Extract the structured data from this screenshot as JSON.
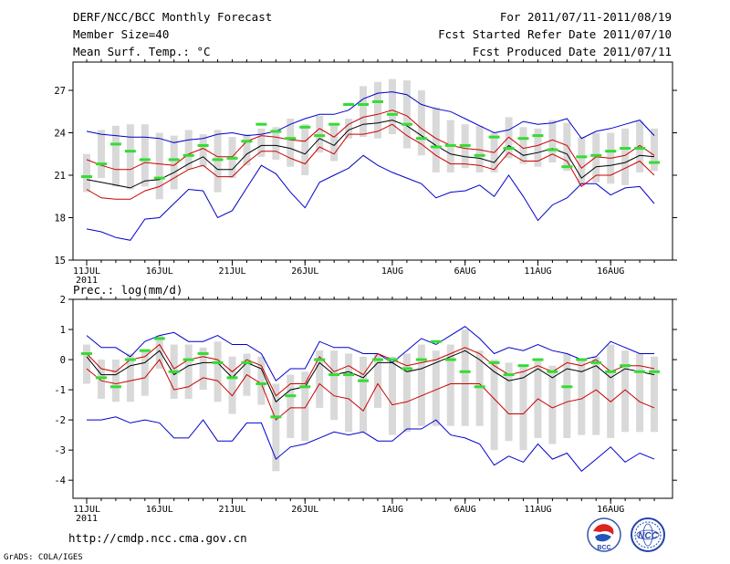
{
  "header": {
    "left_lines": [
      "DERF/NCC/BCC Monthly Forecast",
      "Member Size=40",
      "Mean Surf. Temp.: °C"
    ],
    "right_lines": [
      "For 2011/07/11-2011/08/19",
      "Fcst Started Refer Date 2011/07/10",
      "Fcst Produced Date 2011/07/11"
    ]
  },
  "footer": {
    "url": "http://cmdp.ncc.cma.gov.cn",
    "grads": "GrADS: COLA/IGES"
  },
  "logos": {
    "bcc": "BCC",
    "ncc": "NCC"
  },
  "colors": {
    "max": "#0000cc",
    "mean": "#000000",
    "spread": "#cc0000",
    "member": "#33dd33",
    "box": "#d9d9d9"
  },
  "chart_data": [
    {
      "type": "line",
      "title": "Mean Surf. Temp.: °C",
      "x_labels": [
        "11JUL",
        "16JUL",
        "21JUL",
        "26JUL",
        "1AUG",
        "6AUG",
        "11AUG",
        "16AUG"
      ],
      "x_sublabel": "2011",
      "yticks": [
        15,
        18,
        21,
        24,
        27
      ],
      "ylim": [
        15,
        29
      ],
      "series": {
        "max": [
          24.1,
          23.9,
          23.8,
          23.7,
          23.7,
          23.6,
          23.3,
          23.5,
          23.6,
          23.9,
          24.0,
          23.8,
          23.9,
          24.1,
          24.6,
          25.0,
          25.3,
          25.3,
          25.6,
          26.4,
          26.8,
          26.9,
          26.7,
          26.0,
          25.7,
          25.5,
          25.0,
          24.5,
          24.0,
          24.2,
          24.8,
          24.6,
          24.7,
          25.0,
          23.6,
          24.1,
          24.3,
          24.6,
          24.9,
          23.8
        ],
        "spread_upper": [
          22.1,
          21.7,
          21.4,
          21.4,
          21.9,
          21.8,
          21.7,
          22.5,
          22.9,
          22.3,
          22.3,
          23.4,
          23.8,
          23.7,
          23.5,
          23.4,
          24.3,
          23.7,
          24.6,
          25.1,
          25.3,
          25.6,
          25.2,
          24.3,
          23.6,
          23.1,
          22.9,
          22.8,
          22.6,
          23.7,
          22.9,
          23.1,
          23.5,
          23.1,
          21.5,
          22.3,
          22.2,
          22.4,
          23.1,
          22.4
        ],
        "mean": [
          20.7,
          20.5,
          20.3,
          20.1,
          20.6,
          20.7,
          21.2,
          21.8,
          22.3,
          21.4,
          21.4,
          22.5,
          23.1,
          23.1,
          22.9,
          22.5,
          23.6,
          23.1,
          24.2,
          24.6,
          24.7,
          24.9,
          24.5,
          23.8,
          23.1,
          22.5,
          22.3,
          22.2,
          21.9,
          23.1,
          22.4,
          22.6,
          22.9,
          22.5,
          20.8,
          21.6,
          21.7,
          21.9,
          22.4,
          22.3
        ],
        "spread_lower": [
          20.0,
          19.4,
          19.3,
          19.3,
          19.9,
          20.2,
          20.8,
          21.4,
          21.7,
          20.9,
          20.9,
          21.9,
          22.7,
          22.7,
          22.2,
          21.8,
          23.0,
          22.5,
          23.9,
          23.9,
          24.1,
          24.6,
          23.8,
          23.2,
          22.4,
          21.8,
          21.8,
          21.7,
          21.4,
          22.6,
          22.0,
          22.0,
          22.5,
          22.0,
          20.2,
          21.0,
          21.0,
          21.5,
          22.0,
          21.0
        ],
        "min": [
          17.2,
          17.0,
          16.6,
          16.4,
          17.9,
          18.0,
          19.0,
          20.0,
          19.9,
          18.0,
          18.5,
          20.1,
          21.7,
          21.1,
          19.8,
          18.7,
          20.5,
          21.0,
          21.5,
          22.4,
          21.7,
          21.2,
          20.8,
          20.4,
          19.4,
          19.8,
          19.9,
          20.3,
          19.5,
          21.0,
          19.5,
          17.8,
          18.9,
          19.4,
          20.4,
          20.4,
          19.6,
          20.1,
          20.2,
          19.0
        ],
        "box_top": [
          22.5,
          24.2,
          24.5,
          24.6,
          24.6,
          24.0,
          23.8,
          24.2,
          23.9,
          24.2,
          23.7,
          23.9,
          24.3,
          24.4,
          25.0,
          24.6,
          25.2,
          24.5,
          25.0,
          27.3,
          27.6,
          27.8,
          27.7,
          27.0,
          25.8,
          24.9,
          24.6,
          24.5,
          24.0,
          25.1,
          24.4,
          24.3,
          24.9,
          24.7,
          23.7,
          24.0,
          24.0,
          24.3,
          24.8,
          24.3
        ],
        "box_bottom": [
          19.8,
          20.8,
          20.2,
          20.0,
          20.2,
          19.3,
          20.0,
          21.4,
          21.6,
          19.8,
          20.8,
          21.7,
          22.3,
          22.1,
          21.6,
          21.0,
          22.6,
          22.0,
          23.6,
          23.7,
          23.6,
          23.9,
          22.9,
          22.4,
          21.2,
          21.2,
          21.5,
          21.2,
          21.2,
          22.2,
          21.8,
          21.6,
          21.9,
          21.3,
          20.3,
          20.5,
          20.4,
          20.3,
          21.2,
          21.3
        ],
        "members": [
          20.9,
          21.8,
          23.2,
          22.7,
          22.1,
          20.8,
          22.1,
          22.4,
          23.1,
          22.1,
          22.2,
          23.4,
          24.6,
          24.1,
          23.6,
          24.4,
          23.8,
          24.6,
          26.0,
          26.0,
          26.2,
          25.3,
          24.6,
          23.6,
          23.0,
          23.1,
          23.1,
          22.4,
          23.7,
          22.9,
          23.6,
          23.8,
          22.8,
          21.6,
          22.3,
          22.4,
          22.7,
          22.9,
          22.9,
          21.9
        ]
      }
    },
    {
      "type": "line",
      "title": "Prec.: log(mm/d)",
      "x_labels": [
        "11JUL",
        "16JUL",
        "21JUL",
        "26JUL",
        "1AUG",
        "6AUG",
        "11AUG",
        "16AUG"
      ],
      "x_sublabel": "2011",
      "yticks": [
        -4,
        -3,
        -2,
        -1,
        0,
        1,
        2
      ],
      "ylim": [
        -4.6,
        2
      ],
      "series": {
        "max": [
          0.8,
          0.4,
          0.4,
          0.1,
          0.6,
          0.8,
          0.9,
          0.6,
          0.6,
          0.8,
          0.5,
          0.5,
          0.2,
          -0.7,
          -0.3,
          -0.3,
          0.6,
          0.4,
          0.4,
          0.2,
          0.2,
          -0.1,
          0.3,
          0.7,
          0.5,
          0.8,
          1.1,
          0.7,
          0.2,
          0.4,
          0.3,
          0.5,
          0.3,
          0.2,
          0.0,
          0.1,
          0.6,
          0.4,
          0.2,
          0.2
        ],
        "mean": [
          0.1,
          -0.5,
          -0.5,
          -0.2,
          -0.1,
          0.3,
          -0.5,
          -0.2,
          -0.1,
          -0.1,
          -0.6,
          -0.1,
          -0.3,
          -1.4,
          -1.0,
          -0.9,
          -0.1,
          -0.5,
          -0.4,
          -0.6,
          -0.1,
          -0.1,
          -0.4,
          -0.3,
          -0.1,
          0.1,
          0.3,
          0.0,
          -0.4,
          -0.7,
          -0.6,
          -0.3,
          -0.6,
          -0.3,
          -0.4,
          -0.2,
          -0.6,
          -0.3,
          -0.4,
          -0.5
        ],
        "spread_upper": [
          0.2,
          -0.3,
          -0.4,
          0.0,
          0.1,
          0.5,
          -0.3,
          0.0,
          0.1,
          0.0,
          -0.4,
          0.0,
          -0.2,
          -1.2,
          -0.8,
          -0.8,
          0.1,
          -0.4,
          -0.2,
          -0.5,
          0.2,
          0.0,
          -0.2,
          -0.1,
          0.0,
          0.2,
          0.4,
          0.2,
          -0.2,
          -0.5,
          -0.4,
          -0.2,
          -0.4,
          -0.1,
          -0.2,
          0.0,
          -0.4,
          -0.2,
          -0.2,
          -0.3
        ],
        "spread_lower": [
          -0.3,
          -0.7,
          -0.8,
          -0.7,
          -0.6,
          0.0,
          -1.0,
          -0.9,
          -0.6,
          -0.7,
          -1.2,
          -0.5,
          -0.8,
          -2.0,
          -1.6,
          -1.6,
          -0.8,
          -1.2,
          -1.3,
          -1.7,
          -0.8,
          -1.5,
          -1.4,
          -1.2,
          -1.0,
          -0.8,
          -0.8,
          -0.8,
          -1.3,
          -1.8,
          -1.8,
          -1.3,
          -1.6,
          -1.4,
          -1.3,
          -1.0,
          -1.4,
          -1.0,
          -1.4,
          -1.6
        ],
        "min": [
          -2.0,
          -2.0,
          -1.9,
          -2.1,
          -2.0,
          -2.1,
          -2.6,
          -2.6,
          -2.0,
          -2.7,
          -2.7,
          -2.1,
          -2.1,
          -3.3,
          -2.9,
          -2.8,
          -2.6,
          -2.4,
          -2.5,
          -2.4,
          -2.7,
          -2.7,
          -2.3,
          -2.3,
          -2.0,
          -2.5,
          -2.6,
          -2.8,
          -3.5,
          -3.2,
          -3.4,
          -2.8,
          -3.3,
          -3.1,
          -3.7,
          -3.3,
          -2.9,
          -3.4,
          -3.1,
          -3.3
        ],
        "box_top": [
          0.5,
          0.0,
          0.0,
          0.2,
          0.3,
          0.8,
          0.5,
          0.5,
          0.4,
          0.6,
          0.1,
          0.2,
          0.1,
          -0.8,
          -0.5,
          -0.4,
          0.3,
          0.3,
          0.2,
          0.1,
          0.2,
          0.1,
          0.2,
          0.5,
          0.3,
          0.5,
          1.0,
          0.3,
          0.0,
          -0.1,
          -0.2,
          0.0,
          -0.2,
          0.2,
          0.0,
          0.1,
          0.5,
          0.3,
          0.2,
          0.1
        ],
        "box_bottom": [
          -0.8,
          -1.3,
          -1.4,
          -1.4,
          -1.2,
          -0.3,
          -1.3,
          -1.3,
          -1.0,
          -1.4,
          -1.8,
          -1.2,
          -1.5,
          -3.7,
          -2.6,
          -2.7,
          -1.6,
          -2.0,
          -2.4,
          -2.4,
          -1.6,
          -2.5,
          -2.4,
          -2.2,
          -2.2,
          -2.2,
          -2.2,
          -2.2,
          -3.0,
          -2.7,
          -3.0,
          -2.6,
          -2.8,
          -2.6,
          -2.5,
          -2.5,
          -2.6,
          -2.4,
          -2.4,
          -2.4
        ],
        "members": [
          0.2,
          -0.6,
          -0.9,
          0.0,
          0.3,
          0.7,
          -0.4,
          0.0,
          0.2,
          -0.1,
          -0.6,
          -0.1,
          -0.8,
          -1.9,
          -1.2,
          -0.9,
          0.0,
          -0.5,
          -0.5,
          -0.7,
          0.0,
          0.0,
          -0.3,
          0.0,
          0.6,
          0.0,
          -0.4,
          -0.9,
          -0.1,
          -0.5,
          -0.2,
          0.0,
          -0.4,
          -0.9,
          0.0,
          -0.1,
          -0.4,
          -0.2,
          -0.4,
          -0.4
        ]
      }
    }
  ]
}
